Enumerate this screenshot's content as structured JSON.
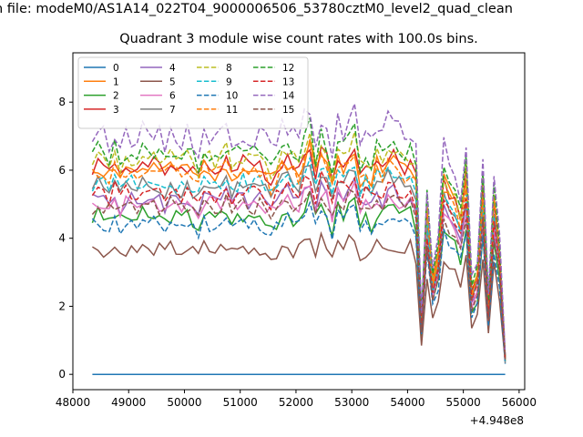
{
  "suptitle": "n file: modeM0/AS1A14_022T04_9000006506_53780cztM0_level2_quad_clean",
  "chart_data": {
    "type": "line",
    "title": "Quadrant 3 module wise count rates with 100.0s bins.",
    "xlabel": "",
    "ylabel": "",
    "x_offset_label": "+4.948e8",
    "xlim": [
      48000,
      56100
    ],
    "ylim": [
      -0.45,
      9.45
    ],
    "xticks": [
      48000,
      49000,
      50000,
      51000,
      52000,
      53000,
      54000,
      55000,
      56000
    ],
    "yticks": [
      0,
      2,
      4,
      6,
      8
    ],
    "x_start": 48350,
    "x_step": 100,
    "n_points": 75,
    "legend": {
      "placement": "upper-left",
      "columns": 4
    },
    "base_profile": [
      1.0,
      1.02,
      1.0,
      0.98,
      1.03,
      0.97,
      1.01,
      1.0,
      0.99,
      1.02,
      0.98,
      1.01,
      1.0,
      0.97,
      1.02,
      1.0,
      0.99,
      1.01,
      0.98,
      0.95,
      1.03,
      1.0,
      0.99,
      1.01,
      1.04,
      0.98,
      1.0,
      1.02,
      0.99,
      1.0,
      1.01,
      0.98,
      0.94,
      0.98,
      1.03,
      1.05,
      1.0,
      0.99,
      1.07,
      1.12,
      0.98,
      1.08,
      1.04,
      0.92,
      1.06,
      1.02,
      1.08,
      1.12,
      0.96,
      1.0,
      0.96,
      1.04,
      1.0,
      1.06,
      1.05,
      1.02,
      1.0,
      1.02,
      0.95,
      0.26,
      0.8,
      0.45,
      0.58,
      0.95,
      0.88,
      0.85,
      0.75,
      0.96,
      0.4,
      0.48,
      0.9,
      0.32,
      0.85,
      0.6,
      0.08
    ],
    "series": [
      {
        "name": "0",
        "color": "#1f77b4",
        "dash": "solid",
        "level": 0.0,
        "wiggle": 0.0,
        "seed": 1
      },
      {
        "name": "1",
        "color": "#ff7f0e",
        "dash": "solid",
        "level": 6.0,
        "wiggle": 0.28,
        "seed": 2
      },
      {
        "name": "2",
        "color": "#2ca02c",
        "dash": "solid",
        "level": 4.6,
        "wiggle": 0.26,
        "seed": 3
      },
      {
        "name": "3",
        "color": "#d62728",
        "dash": "solid",
        "level": 6.1,
        "wiggle": 0.26,
        "seed": 4
      },
      {
        "name": "4",
        "color": "#9467bd",
        "dash": "solid",
        "level": 5.1,
        "wiggle": 0.25,
        "seed": 5
      },
      {
        "name": "5",
        "color": "#8c564b",
        "dash": "solid",
        "level": 3.65,
        "wiggle": 0.22,
        "seed": 6
      },
      {
        "name": "6",
        "color": "#e377c2",
        "dash": "solid",
        "level": 5.0,
        "wiggle": 0.25,
        "seed": 7
      },
      {
        "name": "7",
        "color": "#7f7f7f",
        "dash": "solid",
        "level": 5.5,
        "wiggle": 0.25,
        "seed": 8
      },
      {
        "name": "8",
        "color": "#bcbd22",
        "dash": "dashed",
        "level": 6.3,
        "wiggle": 0.27,
        "seed": 9
      },
      {
        "name": "9",
        "color": "#17becf",
        "dash": "dashed",
        "level": 5.6,
        "wiggle": 0.25,
        "seed": 10
      },
      {
        "name": "10",
        "color": "#1f77b4",
        "dash": "dashed",
        "level": 4.4,
        "wiggle": 0.22,
        "seed": 11
      },
      {
        "name": "11",
        "color": "#ff7f0e",
        "dash": "dashed",
        "level": 5.9,
        "wiggle": 0.27,
        "seed": 12
      },
      {
        "name": "12",
        "color": "#2ca02c",
        "dash": "dashed",
        "level": 6.5,
        "wiggle": 0.27,
        "seed": 13
      },
      {
        "name": "13",
        "color": "#d62728",
        "dash": "dashed",
        "level": 5.3,
        "wiggle": 0.25,
        "seed": 14
      },
      {
        "name": "14",
        "color": "#9467bd",
        "dash": "dashed",
        "level": 7.0,
        "wiggle": 0.32,
        "seed": 15
      },
      {
        "name": "15",
        "color": "#8c564b",
        "dash": "dashed",
        "level": 4.9,
        "wiggle": 0.24,
        "seed": 16
      }
    ]
  }
}
